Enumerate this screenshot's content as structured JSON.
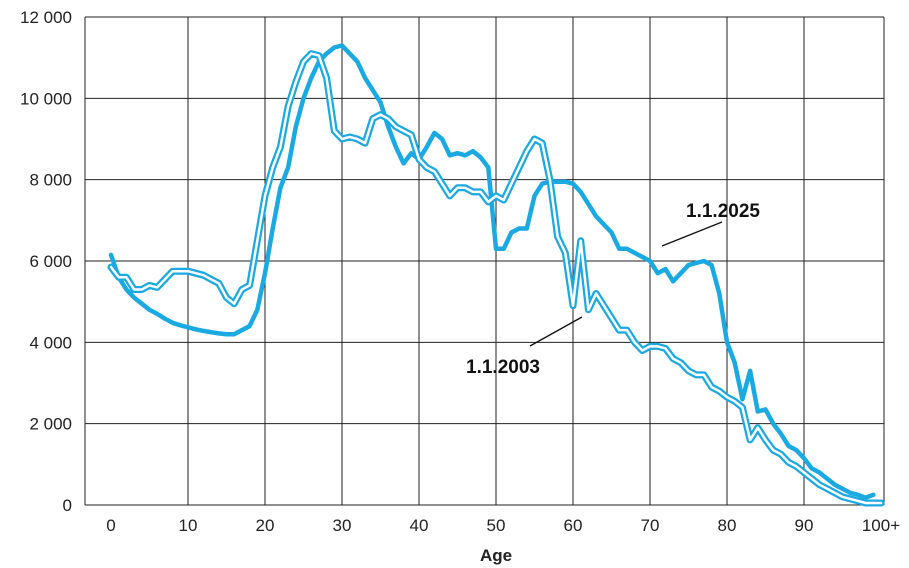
{
  "chart_data": {
    "type": "line",
    "title": "",
    "xlabel": "Age",
    "ylabel": "",
    "xlim": [
      0,
      100
    ],
    "ylim": [
      0,
      12000
    ],
    "grid": true,
    "x_ticks": [
      0,
      10,
      20,
      30,
      40,
      50,
      60,
      70,
      80,
      90,
      100
    ],
    "x_tick_labels": [
      "0",
      "10",
      "20",
      "30",
      "40",
      "50",
      "60",
      "70",
      "80",
      "90",
      "100+"
    ],
    "y_ticks": [
      0,
      2000,
      4000,
      6000,
      8000,
      10000,
      12000
    ],
    "y_tick_labels": [
      "0",
      "2 000",
      "4 000",
      "6 000",
      "8 000",
      "10 000",
      "12 000"
    ],
    "series": [
      {
        "name": "1.1.2025",
        "style": "solid",
        "x": [
          0,
          1,
          2,
          3,
          4,
          5,
          6,
          7,
          8,
          9,
          10,
          11,
          12,
          13,
          14,
          15,
          16,
          17,
          18,
          19,
          20,
          21,
          22,
          23,
          24,
          25,
          26,
          27,
          28,
          29,
          30,
          31,
          32,
          33,
          34,
          35,
          36,
          37,
          38,
          39,
          40,
          41,
          42,
          43,
          44,
          45,
          46,
          47,
          48,
          49,
          50,
          51,
          52,
          53,
          54,
          55,
          56,
          57,
          58,
          59,
          60,
          61,
          62,
          63,
          64,
          65,
          66,
          67,
          68,
          69,
          70,
          71,
          72,
          73,
          74,
          75,
          76,
          77,
          78,
          79,
          80,
          81,
          82,
          83,
          84,
          85,
          86,
          87,
          88,
          89,
          90,
          91,
          92,
          93,
          94,
          95,
          96,
          97,
          98,
          99
        ],
        "values": [
          6150,
          5600,
          5300,
          5100,
          4950,
          4800,
          4700,
          4580,
          4480,
          4420,
          4370,
          4320,
          4280,
          4250,
          4220,
          4200,
          4200,
          4300,
          4400,
          4800,
          5700,
          6800,
          7800,
          8300,
          9300,
          10000,
          10500,
          10900,
          11100,
          11250,
          11300,
          11100,
          10900,
          10500,
          10200,
          9900,
          9300,
          8800,
          8400,
          8650,
          8500,
          8800,
          9150,
          9000,
          8600,
          8650,
          8600,
          8700,
          8550,
          8300,
          6300,
          6300,
          6700,
          6800,
          6800,
          7600,
          7900,
          7950,
          7950,
          7950,
          7900,
          7700,
          7400,
          7100,
          6900,
          6700,
          6300,
          6300,
          6200,
          6100,
          6000,
          5700,
          5800,
          5500,
          5700,
          5900,
          5950,
          6000,
          5900,
          5200,
          4000,
          3500,
          2600,
          3300,
          2300,
          2350,
          2000,
          1750,
          1450,
          1350,
          1150,
          900,
          800,
          650,
          500,
          400,
          300,
          250,
          180,
          250
        ]
      },
      {
        "name": "1.1.2003",
        "style": "outlined",
        "x": [
          0,
          1,
          2,
          3,
          4,
          5,
          6,
          7,
          8,
          9,
          10,
          11,
          12,
          13,
          14,
          15,
          16,
          17,
          18,
          19,
          20,
          21,
          22,
          23,
          24,
          25,
          26,
          27,
          28,
          29,
          30,
          31,
          32,
          33,
          34,
          35,
          36,
          37,
          38,
          39,
          40,
          41,
          42,
          43,
          44,
          45,
          46,
          47,
          48,
          49,
          50,
          51,
          52,
          53,
          54,
          55,
          56,
          57,
          58,
          59,
          60,
          61,
          62,
          63,
          64,
          65,
          66,
          67,
          68,
          69,
          70,
          71,
          72,
          73,
          74,
          75,
          76,
          77,
          78,
          79,
          80,
          81,
          82,
          83,
          84,
          85,
          86,
          87,
          88,
          89,
          90,
          91,
          92,
          93,
          94,
          95,
          96,
          97,
          98,
          99,
          100
        ],
        "values": [
          5850,
          5600,
          5600,
          5300,
          5300,
          5400,
          5350,
          5550,
          5750,
          5750,
          5750,
          5700,
          5650,
          5550,
          5450,
          5100,
          4950,
          5300,
          5400,
          6500,
          7600,
          8300,
          8800,
          9800,
          10400,
          10900,
          11100,
          11050,
          10500,
          9200,
          9000,
          9050,
          9000,
          8900,
          9500,
          9600,
          9500,
          9300,
          9200,
          9100,
          8500,
          8300,
          8200,
          7900,
          7600,
          7800,
          7800,
          7700,
          7700,
          7450,
          7600,
          7500,
          7900,
          8300,
          8700,
          9000,
          8900,
          8000,
          6600,
          6200,
          4900,
          6500,
          4800,
          5200,
          4900,
          4600,
          4300,
          4300,
          4000,
          3800,
          3900,
          3900,
          3850,
          3600,
          3500,
          3300,
          3200,
          3200,
          2900,
          2800,
          2650,
          2550,
          2400,
          1600,
          1900,
          1600,
          1350,
          1250,
          1050,
          950,
          800,
          650,
          500,
          400,
          300,
          200,
          150,
          100,
          50,
          50,
          50
        ]
      }
    ],
    "annotations": [
      {
        "text": "1.1.2025",
        "series": "1.1.2025"
      },
      {
        "text": "1.1.2003",
        "series": "1.1.2003"
      }
    ],
    "colors": {
      "line": "#1ba9e1",
      "outline_fill": "#ffffff",
      "grid": "#222222",
      "text": "#222222"
    }
  }
}
